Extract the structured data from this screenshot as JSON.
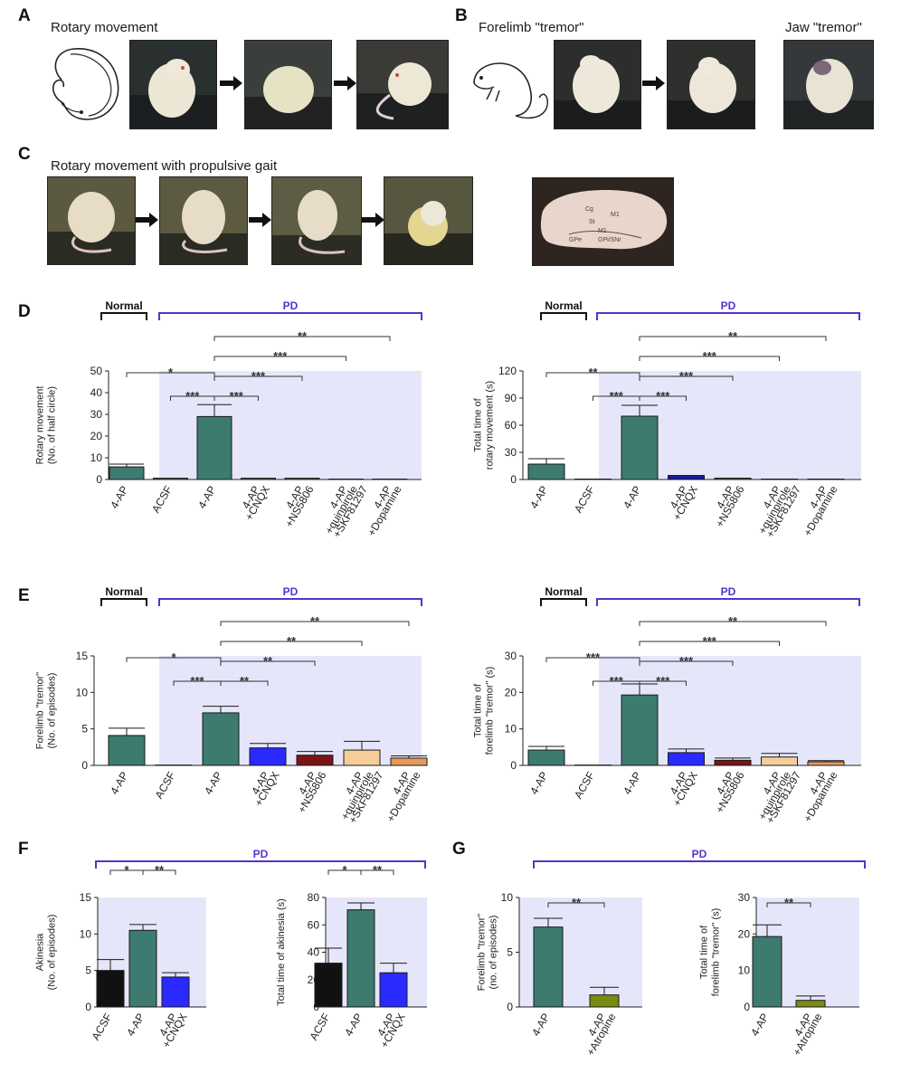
{
  "panels": {
    "A": {
      "letter": "A",
      "title": "Rotary movement"
    },
    "B": {
      "letter": "B",
      "title": "Forelimb \"tremor\"",
      "title2": "Jaw \"tremor\""
    },
    "C": {
      "letter": "C",
      "title": "Rotary movement with propulsive gait"
    },
    "D": {
      "letter": "D"
    },
    "E": {
      "letter": "E"
    },
    "F": {
      "letter": "F"
    },
    "G": {
      "letter": "G"
    }
  },
  "brain_labels": {
    "l1": "Cg",
    "l2": "M1",
    "l3": "St",
    "l4": "M1",
    "l5": "GPe",
    "l6": "GPi/SNr"
  },
  "groups": {
    "normal": "Normal",
    "pd": "PD"
  },
  "colors": {
    "teal": "#3d7a70",
    "blue": "#2a2aff",
    "darkred": "#7a1414",
    "peach": "#f6cc9a",
    "orange": "#e59a5e",
    "black": "#111111",
    "olive": "#7a8a12",
    "shade": "#e6e6fb",
    "purple": "#5533cc"
  },
  "chart_data": [
    {
      "id": "D-left",
      "type": "bar",
      "ylabel_lines": [
        "Rotary movement",
        "(No. of half circle)"
      ],
      "ylim": [
        0,
        50
      ],
      "yticks": [
        0,
        10,
        20,
        30,
        40,
        50
      ],
      "categories": [
        "4-AP",
        "ACSF",
        "4-AP",
        "4-AP +CNQX",
        "4-AP +NS5806",
        "4-AP +quinpirole +SKF81297",
        "4-AP +Dopamine"
      ],
      "tick_labels": [
        [
          "4-AP"
        ],
        [
          "ACSF"
        ],
        [
          "4-AP"
        ],
        [
          "4-AP",
          "+CNQX"
        ],
        [
          "4-AP",
          "+NS5806"
        ],
        [
          "4-AP",
          "+quinpirole",
          "+SKF81297"
        ],
        [
          "4-AP",
          "+Dopamine"
        ]
      ],
      "values": [
        5.8,
        0.6,
        29,
        0.6,
        0.6,
        0.2,
        0.2
      ],
      "errors": [
        1.3,
        0,
        5.5,
        0,
        0,
        0,
        0
      ],
      "colors": [
        "teal",
        "teal",
        "teal",
        "teal",
        "teal",
        "teal",
        "teal"
      ],
      "sig": [
        {
          "a": 0,
          "b": 2,
          "label": "*",
          "level": 2
        },
        {
          "a": 1,
          "b": 2,
          "label": "***",
          "level": 0
        },
        {
          "a": 2,
          "b": 3,
          "label": "***",
          "level": 0
        },
        {
          "a": 2,
          "b": 4,
          "label": "***",
          "level": 1
        },
        {
          "a": 2,
          "b": 5,
          "label": "***",
          "level": 3
        },
        {
          "a": 2,
          "b": 6,
          "label": "**",
          "level": 4
        }
      ]
    },
    {
      "id": "D-right",
      "type": "bar",
      "ylabel_lines": [
        "Total time of",
        "rotary movement (s)"
      ],
      "ylim": [
        0,
        120
      ],
      "yticks": [
        0,
        30,
        60,
        90,
        120
      ],
      "categories": [
        "4-AP",
        "ACSF",
        "4-AP",
        "4-AP +CNQX",
        "4-AP +NS5806",
        "4-AP +quinpirole +SKF81297",
        "4-AP +Dopamine"
      ],
      "tick_labels": [
        [
          "4-AP"
        ],
        [
          "ACSF"
        ],
        [
          "4-AP"
        ],
        [
          "4-AP",
          "+CNQX"
        ],
        [
          "4-AP",
          "+NS5806"
        ],
        [
          "4-AP",
          "+quinpirole",
          "+SKF81297"
        ],
        [
          "4-AP",
          "+Dopamine"
        ]
      ],
      "values": [
        17,
        0.5,
        70,
        4.5,
        1.5,
        0.5,
        0.5
      ],
      "errors": [
        6,
        0,
        12,
        0,
        0,
        0,
        0
      ],
      "colors": [
        "teal",
        "teal",
        "teal",
        "darkblue",
        "teal",
        "teal",
        "teal"
      ],
      "sig": [
        {
          "a": 0,
          "b": 2,
          "label": "**",
          "level": 2
        },
        {
          "a": 1,
          "b": 2,
          "label": "***",
          "level": 0
        },
        {
          "a": 2,
          "b": 3,
          "label": "***",
          "level": 0
        },
        {
          "a": 2,
          "b": 4,
          "label": "***",
          "level": 1
        },
        {
          "a": 2,
          "b": 5,
          "label": "***",
          "level": 3
        },
        {
          "a": 2,
          "b": 6,
          "label": "**",
          "level": 4
        }
      ]
    },
    {
      "id": "E-left",
      "type": "bar",
      "ylabel_lines": [
        "Forelimb \"tremor\"",
        "(No. of episodes)"
      ],
      "ylim": [
        0,
        15
      ],
      "yticks": [
        0,
        5,
        10,
        15
      ],
      "categories": [
        "4-AP",
        "ACSF",
        "4-AP",
        "4-AP +CNQX",
        "4-AP +NS5806",
        "4-AP +quinpirole +SKF81297",
        "4-AP +Dopamine"
      ],
      "tick_labels": [
        [
          "4-AP"
        ],
        [
          "ACSF"
        ],
        [
          "4-AP"
        ],
        [
          "4-AP",
          "+CNQX"
        ],
        [
          "4-AP",
          "+NS5806"
        ],
        [
          "4-AP",
          "+quinpirole",
          "+SKF81297"
        ],
        [
          "4-AP",
          "+Dopamine"
        ]
      ],
      "values": [
        4.1,
        0.05,
        7.2,
        2.4,
        1.4,
        2.1,
        1.0
      ],
      "errors": [
        1.0,
        0,
        0.9,
        0.6,
        0.5,
        1.2,
        0.3
      ],
      "colors": [
        "teal",
        "teal",
        "teal",
        "blue",
        "darkred",
        "peach",
        "orange"
      ],
      "sig": [
        {
          "a": 0,
          "b": 2,
          "label": "*",
          "level": 2
        },
        {
          "a": 1,
          "b": 2,
          "label": "***",
          "level": 0
        },
        {
          "a": 2,
          "b": 3,
          "label": "**",
          "level": 0
        },
        {
          "a": 2,
          "b": 4,
          "label": "**",
          "level": 1
        },
        {
          "a": 2,
          "b": 5,
          "label": "**",
          "level": 3
        },
        {
          "a": 2,
          "b": 6,
          "label": "**",
          "level": 4
        }
      ]
    },
    {
      "id": "E-right",
      "type": "bar",
      "ylabel_lines": [
        "Total time of",
        "forelimb \"tremor\" (s)"
      ],
      "ylim": [
        0,
        30
      ],
      "yticks": [
        0,
        10,
        20,
        30
      ],
      "categories": [
        "4-AP",
        "ACSF",
        "4-AP",
        "4-AP +CNQX",
        "4-AP +NS5806",
        "4-AP +quinpirole +SKF81297",
        "4-AP +Dopamine"
      ],
      "tick_labels": [
        [
          "4-AP"
        ],
        [
          "ACSF"
        ],
        [
          "4-AP"
        ],
        [
          "4-AP",
          "+CNQX"
        ],
        [
          "4-AP",
          "+NS5806"
        ],
        [
          "4-AP",
          "+quinpirole",
          "+SKF81297"
        ],
        [
          "4-AP",
          "+Dopamine"
        ]
      ],
      "values": [
        4.2,
        0.1,
        19.3,
        3.5,
        1.4,
        2.3,
        1.0
      ],
      "errors": [
        1.0,
        0,
        3.0,
        1.0,
        0.6,
        1.0,
        0.3
      ],
      "colors": [
        "teal",
        "teal",
        "teal",
        "blue",
        "darkred",
        "peach",
        "orange"
      ],
      "sig": [
        {
          "a": 0,
          "b": 2,
          "label": "***",
          "level": 2
        },
        {
          "a": 1,
          "b": 2,
          "label": "***",
          "level": 0
        },
        {
          "a": 2,
          "b": 3,
          "label": "***",
          "level": 0
        },
        {
          "a": 2,
          "b": 4,
          "label": "***",
          "level": 1
        },
        {
          "a": 2,
          "b": 5,
          "label": "***",
          "level": 3
        },
        {
          "a": 2,
          "b": 6,
          "label": "**",
          "level": 4
        }
      ]
    },
    {
      "id": "F-left",
      "type": "bar",
      "ylabel_lines": [
        "Akinesia",
        "(No. of episodes)"
      ],
      "ylim": [
        0,
        15
      ],
      "yticks": [
        0,
        5,
        10,
        15
      ],
      "categories": [
        "ACSF",
        "4-AP",
        "4-AP +CNQX"
      ],
      "tick_labels": [
        [
          "ACSF"
        ],
        [
          "4-AP"
        ],
        [
          "4-AP",
          "+CNQX"
        ]
      ],
      "values": [
        5.0,
        10.5,
        4.1
      ],
      "errors": [
        1.5,
        0.8,
        0.6
      ],
      "colors": [
        "black",
        "teal",
        "blue"
      ],
      "sig": [
        {
          "a": 0,
          "b": 1,
          "label": "*",
          "level": 0
        },
        {
          "a": 1,
          "b": 2,
          "label": "**",
          "level": 0
        }
      ]
    },
    {
      "id": "F-right",
      "type": "bar",
      "ylabel_lines": [
        "Total time of akinesia (s)"
      ],
      "ylim": [
        0,
        80
      ],
      "yticks": [
        0,
        20,
        40,
        60,
        80
      ],
      "categories": [
        "ACSF",
        "4-AP",
        "4-AP +CNQX"
      ],
      "tick_labels": [
        [
          "ACSF"
        ],
        [
          "4-AP"
        ],
        [
          "4-AP",
          "+CNQX"
        ]
      ],
      "values": [
        32,
        71,
        25
      ],
      "errors": [
        11,
        5,
        7
      ],
      "colors": [
        "black",
        "teal",
        "blue"
      ],
      "sig": [
        {
          "a": 0,
          "b": 1,
          "label": "*",
          "level": 0
        },
        {
          "a": 1,
          "b": 2,
          "label": "**",
          "level": 0
        }
      ]
    },
    {
      "id": "G-left",
      "type": "bar",
      "ylabel_lines": [
        "Forelimb \"tremor\"",
        "(no. of episodes)"
      ],
      "ylim": [
        0,
        10
      ],
      "yticks": [
        0,
        5,
        10
      ],
      "categories": [
        "4-AP",
        "4-AP +Atropine"
      ],
      "tick_labels": [
        [
          "4-AP"
        ],
        [
          "4-AP",
          "+Atropine"
        ]
      ],
      "values": [
        7.3,
        1.1
      ],
      "errors": [
        0.8,
        0.7
      ],
      "colors": [
        "teal",
        "olive"
      ],
      "sig": [
        {
          "a": 0,
          "b": 1,
          "label": "**",
          "level": 0
        }
      ]
    },
    {
      "id": "G-right",
      "type": "bar",
      "ylabel_lines": [
        "Total time of",
        "forelimb \"tremor\" (s)"
      ],
      "ylim": [
        0,
        30
      ],
      "yticks": [
        0,
        10,
        20,
        30
      ],
      "categories": [
        "4-AP",
        "4-AP +Atropine"
      ],
      "tick_labels": [
        [
          "4-AP"
        ],
        [
          "4-AP",
          "+Atropine"
        ]
      ],
      "values": [
        19.3,
        1.8
      ],
      "errors": [
        3.2,
        1.2
      ],
      "colors": [
        "teal",
        "olive"
      ],
      "sig": [
        {
          "a": 0,
          "b": 1,
          "label": "**",
          "level": 0
        }
      ]
    }
  ]
}
